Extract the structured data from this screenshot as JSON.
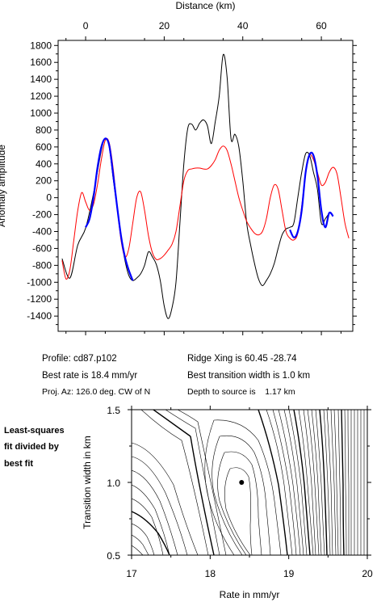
{
  "chart_data": [
    {
      "type": "line",
      "xlabel": "Distance (km)",
      "ylabel": "Anomaly amplitude",
      "xlim": [
        -7,
        68
      ],
      "ylim": [
        -1580,
        1860
      ],
      "xticks": [
        0,
        20,
        40,
        60
      ],
      "yticks": [
        -1400,
        -1200,
        -1000,
        -800,
        -600,
        -400,
        -200,
        0,
        200,
        400,
        600,
        800,
        1000,
        1200,
        1400,
        1600,
        1800
      ],
      "x_axis_position": "top",
      "grid": false,
      "series": [
        {
          "color": "#000000",
          "x": [
            -6,
            -4,
            -2,
            0,
            2,
            4,
            5,
            6,
            7,
            8,
            9,
            10,
            11,
            12,
            13,
            14,
            15,
            16,
            17,
            18,
            19,
            20,
            21,
            22,
            23,
            24,
            25,
            26,
            27,
            28,
            29,
            30,
            31,
            32,
            33,
            34,
            35,
            36,
            37,
            38,
            39,
            40,
            41,
            42,
            43,
            44,
            45,
            46,
            47,
            48,
            49,
            50,
            51,
            52,
            53,
            54,
            55,
            56,
            57,
            58,
            59,
            60,
            61,
            62
          ],
          "values": [
            -720,
            -950,
            -560,
            -360,
            50,
            560,
            700,
            600,
            230,
            -120,
            -470,
            -740,
            -920,
            -980,
            -950,
            -900,
            -800,
            -640,
            -700,
            -790,
            -980,
            -1280,
            -1430,
            -1300,
            -1000,
            -300,
            400,
            820,
            870,
            800,
            880,
            920,
            850,
            640,
            900,
            1200,
            1690,
            1430,
            700,
            750,
            600,
            200,
            -300,
            -560,
            -780,
            -960,
            -1040,
            -980,
            -900,
            -780,
            -600,
            -440,
            -370,
            -350,
            -300,
            0,
            300,
            520,
            500,
            300,
            100,
            -300,
            -250,
            -180
          ]
        },
        {
          "color": "#ff0000",
          "x": [
            -6,
            -5,
            -4,
            -3,
            -2,
            -1,
            0,
            1,
            2,
            3,
            4,
            5,
            6,
            7,
            8,
            9,
            10,
            11,
            12,
            13,
            14,
            15,
            16,
            17,
            18,
            19,
            20,
            21,
            22,
            23,
            24,
            25,
            26,
            27,
            28,
            29,
            30,
            31,
            32,
            33,
            34,
            35,
            36,
            37,
            38,
            39,
            40,
            41,
            42,
            43,
            44,
            45,
            46,
            47,
            48,
            49,
            50,
            51,
            52,
            53,
            54,
            55,
            56,
            57,
            58,
            59,
            60,
            61,
            62,
            63,
            64,
            65,
            66,
            67
          ],
          "values": [
            -740,
            -960,
            -850,
            -500,
            -150,
            60,
            -50,
            -150,
            -80,
            150,
            450,
            680,
            650,
            350,
            -100,
            -500,
            -700,
            -600,
            -300,
            0,
            70,
            -150,
            -450,
            -650,
            -730,
            -720,
            -680,
            -620,
            -550,
            -400,
            -100,
            200,
            320,
            340,
            350,
            350,
            340,
            340,
            380,
            450,
            560,
            610,
            560,
            400,
            200,
            0,
            -150,
            -280,
            -360,
            -420,
            -440,
            -400,
            -250,
            0,
            150,
            100,
            -150,
            -400,
            -480,
            -500,
            -420,
            -100,
            300,
            500,
            450,
            300,
            150,
            180,
            300,
            360,
            280,
            0,
            -300,
            -480
          ]
        },
        {
          "color": "#0000ff",
          "x": [
            0,
            1,
            2,
            3,
            4,
            5,
            6,
            7,
            8,
            9,
            10,
            11,
            12
          ],
          "values": [
            -350,
            -250,
            0,
            350,
            600,
            700,
            620,
            280,
            -100,
            -450,
            -700,
            -860,
            -980
          ]
        },
        {
          "color": "#0000ff",
          "x": [
            52,
            53,
            54,
            55,
            56,
            57,
            58,
            59,
            60,
            61,
            62,
            63
          ],
          "values": [
            -380,
            -470,
            -400,
            -150,
            300,
            510,
            500,
            260,
            -150,
            -350,
            -180,
            -220
          ]
        }
      ]
    },
    {
      "type": "contour",
      "xlabel": "Rate in mm/yr",
      "ylabel": "Transition width in km",
      "xlim": [
        17,
        20
      ],
      "ylim": [
        0.5,
        1.5
      ],
      "xticks": [
        "17",
        "18",
        "19",
        "20"
      ],
      "yticks": [
        "0.5",
        "1.0",
        "1.5"
      ],
      "grid": false,
      "best_fit": {
        "x": 18.4,
        "y": 1.0
      }
    }
  ],
  "info": {
    "profile": "Profile: cd87.p102",
    "ridge": "Ridge Xing is 60.45 -28.74",
    "rate": "Best rate is 18.4 mm/yr",
    "width": "Best transition width is 1.0 km",
    "azimuth": "Proj. Az: 126.0 deg. CW of N",
    "depth": "Depth to source is    1.17 km"
  },
  "side_note": [
    "Least-squares",
    "fit divided by",
    "best fit"
  ]
}
